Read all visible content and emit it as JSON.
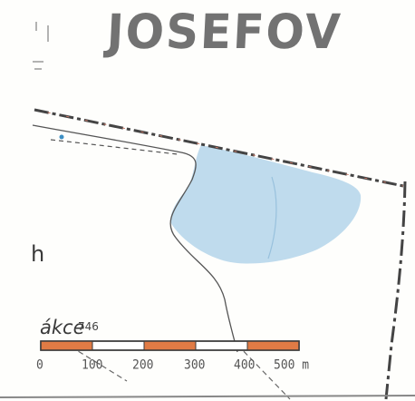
{
  "map": {
    "title": "JOSEFOV",
    "side_label": "h",
    "caption": "ákce",
    "parcel_number": "746",
    "scale_bar": {
      "labels": [
        "0",
        "100",
        "200",
        "300",
        "400",
        "500 m"
      ],
      "colors": [
        "#e07b45",
        "#ffffff"
      ]
    },
    "colors": {
      "area_fill": "#a9cfe8",
      "road_line": "#444444",
      "boundary_line": "#c87a6a"
    }
  }
}
